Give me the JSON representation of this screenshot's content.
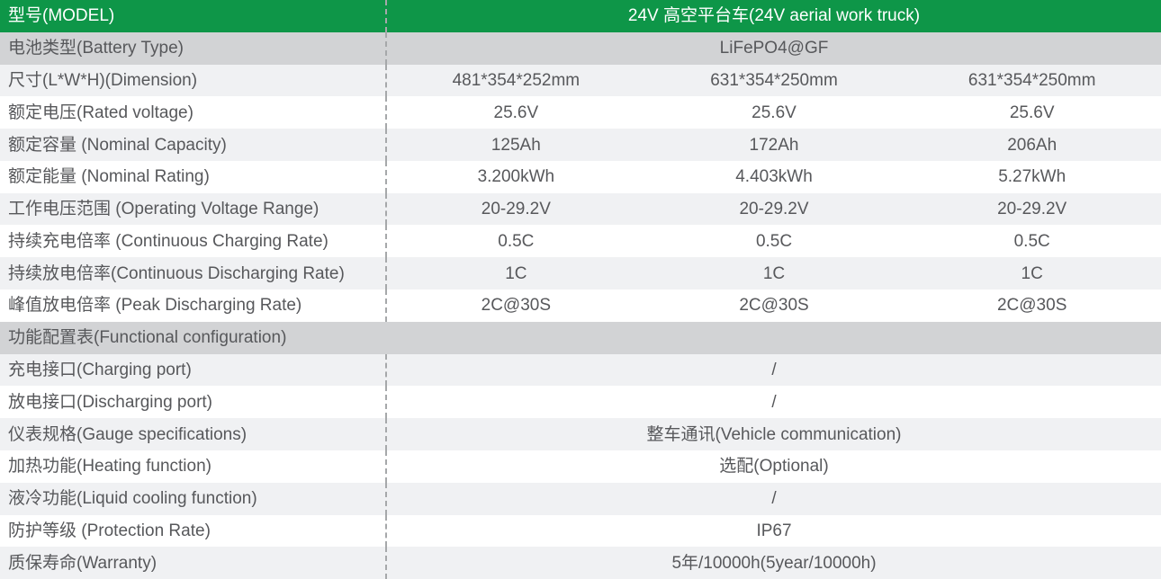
{
  "theme": {
    "green": "#0e9648",
    "row_gray": "#d2d3d5",
    "row_light": "#f0f1f3",
    "row_white": "#ffffff",
    "text": "#57585b",
    "header_text": "#ffffff",
    "divider": "#a6a8aa"
  },
  "table": {
    "header": {
      "label": "型号(MODEL)",
      "value": "24V 高空平台车(24V aerial work truck)"
    },
    "rows": [
      {
        "label": "电池类型(Battery Type)",
        "value": "LiFePO4@GF"
      },
      {
        "label": "尺寸(L*W*H)(Dimension)",
        "values": [
          "481*354*252mm",
          "631*354*250mm",
          "631*354*250mm"
        ]
      },
      {
        "label": "额定电压(Rated voltage)",
        "values": [
          "25.6V",
          "25.6V",
          "25.6V"
        ]
      },
      {
        "label": "额定容量 (Nominal Capacity)",
        "values": [
          "125Ah",
          "172Ah",
          "206Ah"
        ]
      },
      {
        "label": "额定能量 (Nominal Rating)",
        "values": [
          "3.200kWh",
          "4.403kWh",
          "5.27kWh"
        ]
      },
      {
        "label": "工作电压范围 (Operating Voltage Range)",
        "values": [
          "20-29.2V",
          "20-29.2V",
          "20-29.2V"
        ]
      },
      {
        "label": "持续充电倍率 (Continuous Charging Rate)",
        "values": [
          "0.5C",
          "0.5C",
          "0.5C"
        ]
      },
      {
        "label": "持续放电倍率(Continuous Discharging Rate)",
        "values": [
          "1C",
          "1C",
          "1C"
        ]
      },
      {
        "label": "峰值放电倍率 (Peak Discharging Rate)",
        "values": [
          "2C@30S",
          "2C@30S",
          "2C@30S"
        ]
      },
      {
        "label": "功能配置表(Functional configuration)"
      },
      {
        "label": "充电接口(Charging port)",
        "value": "/"
      },
      {
        "label": "放电接口(Discharging port)",
        "value": "/"
      },
      {
        "label": "仪表规格(Gauge specifications)",
        "value": "整车通讯(Vehicle communication)"
      },
      {
        "label": "加热功能(Heating function)",
        "value": "选配(Optional)"
      },
      {
        "label": "液冷功能(Liquid cooling function)",
        "value": "/"
      },
      {
        "label": "防护等级 (Protection Rate)",
        "value": "IP67"
      },
      {
        "label": "质保寿命(Warranty)",
        "value": "5年/10000h(5year/10000h)"
      }
    ]
  }
}
